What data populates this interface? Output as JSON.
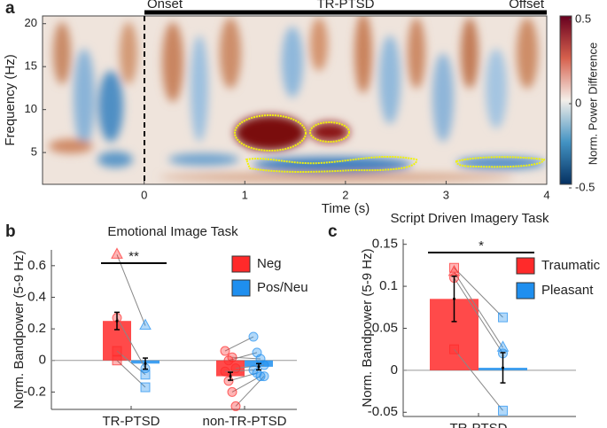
{
  "chart_data": [
    {
      "type": "heatmap",
      "panel_label": "a",
      "markers": [
        "Onset",
        "TR-PTSD",
        "Offset"
      ],
      "xlabel": "Time (s)",
      "ylabel": "Frequency (Hz)",
      "xlim": [
        -1.01,
        4
      ],
      "ylim": [
        1.3,
        20.9
      ],
      "xticks": [
        0,
        1,
        2,
        3,
        4
      ],
      "yticks": [
        5,
        10,
        15,
        20
      ],
      "contour_color": "#f2f20a",
      "colorbar": {
        "label": "Norm. Power Difference",
        "lim": [
          -0.5,
          0.5
        ],
        "ticks": [
          0.5,
          0,
          -0.5
        ],
        "colors": [
          "#053061",
          "#4393c3",
          "#f4efe9",
          "#d6604d",
          "#67001f"
        ]
      }
    },
    {
      "type": "bar",
      "panel_label": "b",
      "title": "Emotional Image Task",
      "ylabel": "Norm. Bandpower (5-9 Hz)",
      "categories": [
        "TR-PTSD",
        "non-TR-PTSD"
      ],
      "ylim": [
        -0.31,
        0.7
      ],
      "yticks": [
        -0.2,
        0,
        0.2,
        0.4,
        0.6
      ],
      "significance_labels": [
        "**",
        null
      ],
      "series": [
        {
          "name": "Neg",
          "color": "#ff2a2a",
          "values": [
            0.25,
            -0.1
          ],
          "errors": [
            0.055,
            0.025
          ],
          "points": [
            [
              0.67,
              0.27,
              0.06,
              0.0
            ],
            [
              0.06,
              0.0,
              0.02,
              -0.05,
              -0.07,
              -0.13,
              -0.2,
              -0.29
            ]
          ]
        },
        {
          "name": "Pos/Neu",
          "color": "#1f8fef",
          "values": [
            -0.02,
            -0.04
          ],
          "errors": [
            0.035,
            0.02
          ],
          "points": [
            [
              0.22,
              -0.05,
              -0.09,
              -0.17
            ],
            [
              0.15,
              0.05,
              0.01,
              -0.03,
              -0.06,
              -0.08,
              -0.1,
              -0.1
            ]
          ]
        }
      ]
    },
    {
      "type": "bar",
      "panel_label": "c",
      "title": "Script Driven Imagery Task",
      "ylabel": "Norm. Bandpower (5-9 Hz)",
      "categories": [
        "TR-PTSD"
      ],
      "ylim": [
        -0.055,
        0.156
      ],
      "yticks": [
        -0.05,
        0,
        0.05,
        0.1,
        0.15
      ],
      "significance_labels": [
        "*"
      ],
      "series": [
        {
          "name": "Traumatic",
          "color": "#ff2a2a",
          "values": [
            0.085
          ],
          "errors": [
            0.027
          ],
          "points": [
            [
              0.117,
              0.11,
              0.122,
              0.025
            ]
          ]
        },
        {
          "name": "Pleasant",
          "color": "#1f8fef",
          "values": [
            0.003
          ],
          "errors": [
            0.018
          ],
          "points": [
            [
              0.027,
              0.02,
              0.063,
              -0.048
            ]
          ]
        }
      ]
    }
  ]
}
